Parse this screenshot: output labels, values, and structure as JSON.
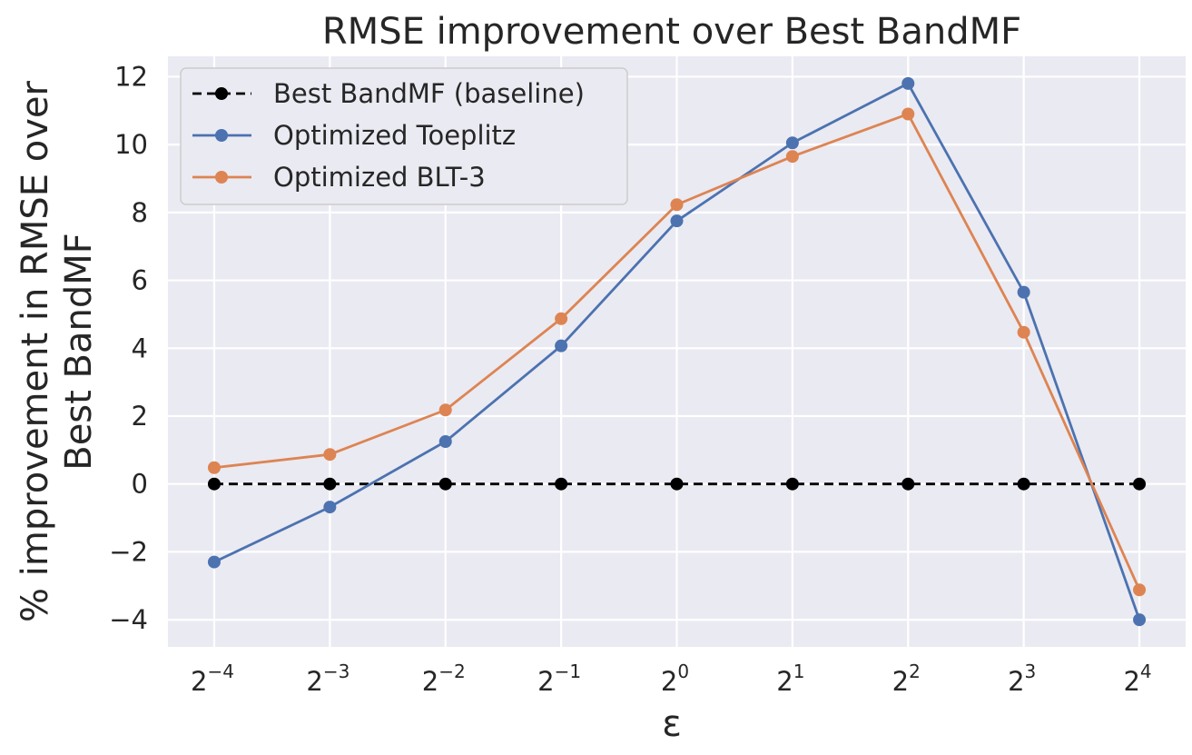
{
  "chart_data": {
    "type": "line",
    "title": "RMSE improvement over Best BandMF",
    "xlabel": "ε",
    "ylabel_lines": [
      "% improvement in RMSE over",
      "Best BandMF"
    ],
    "x_exponents": [
      -4,
      -3,
      -2,
      -1,
      0,
      1,
      2,
      3,
      4
    ],
    "x_tick_labels": [
      {
        "base": "2",
        "exp": "−4"
      },
      {
        "base": "2",
        "exp": "−3"
      },
      {
        "base": "2",
        "exp": "−2"
      },
      {
        "base": "2",
        "exp": "−1"
      },
      {
        "base": "2",
        "exp": "0"
      },
      {
        "base": "2",
        "exp": "1"
      },
      {
        "base": "2",
        "exp": "2"
      },
      {
        "base": "2",
        "exp": "3"
      },
      {
        "base": "2",
        "exp": "4"
      }
    ],
    "y_ticks": [
      12,
      10,
      8,
      6,
      4,
      2,
      0,
      -2,
      -4
    ],
    "y_tick_labels": [
      "12",
      "10",
      "8",
      "6",
      "4",
      "2",
      "0",
      "−2",
      "−4"
    ],
    "ylim": [
      -4.8,
      12.6
    ],
    "xlim": [
      -4.4,
      4.4
    ],
    "grid": true,
    "legend_position": "top-left",
    "series": [
      {
        "name": "Best BandMF (baseline)",
        "color": "#000000",
        "dashed": true,
        "values": [
          0,
          0,
          0,
          0,
          0,
          0,
          0,
          0,
          0
        ]
      },
      {
        "name": "Optimized Toeplitz",
        "color": "#4c72b0",
        "dashed": false,
        "values": [
          -2.3,
          -0.68,
          1.25,
          4.07,
          7.75,
          10.05,
          11.8,
          5.65,
          -4.0
        ]
      },
      {
        "name": "Optimized BLT-3",
        "color": "#dd8452",
        "dashed": false,
        "values": [
          0.48,
          0.87,
          2.18,
          4.87,
          8.23,
          9.65,
          10.9,
          4.47,
          -3.12
        ]
      }
    ]
  }
}
